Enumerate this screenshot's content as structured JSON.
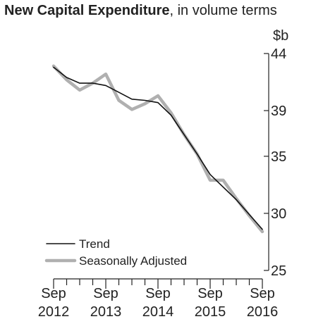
{
  "title": {
    "bold": "New Capital Expenditure",
    "rest": ", in volume terms"
  },
  "chart_data": {
    "type": "line",
    "ylabel": "$b",
    "ylim": [
      25,
      44
    ],
    "yticks": [
      25,
      30,
      35,
      39,
      44
    ],
    "xticks": [
      {
        "top": "Sep",
        "bottom": "2012"
      },
      {
        "top": "Sep",
        "bottom": "2013"
      },
      {
        "top": "Sep",
        "bottom": "2014"
      },
      {
        "top": "Sep",
        "bottom": "2015"
      },
      {
        "top": "Sep",
        "bottom": "2016"
      }
    ],
    "x": [
      "Sep 2012",
      "Dec 2012",
      "Mar 2013",
      "Jun 2013",
      "Sep 2013",
      "Dec 2013",
      "Mar 2014",
      "Jun 2014",
      "Sep 2014",
      "Dec 2014",
      "Mar 2015",
      "Jun 2015",
      "Sep 2015",
      "Dec 2015",
      "Mar 2016",
      "Jun 2016",
      "Sep 2016"
    ],
    "series": [
      {
        "name": "Trend",
        "color": "#111111",
        "values": [
          42.8,
          41.9,
          41.4,
          41.4,
          41.2,
          40.6,
          40.0,
          39.9,
          39.7,
          38.6,
          36.9,
          35.2,
          33.4,
          32.3,
          31.2,
          29.9,
          28.6
        ]
      },
      {
        "name": "Seasonally Adjusted",
        "color": "#b0b0b0",
        "values": [
          42.9,
          41.7,
          40.8,
          41.4,
          42.2,
          39.9,
          39.1,
          39.6,
          40.3,
          38.8,
          36.9,
          35.2,
          32.9,
          32.9,
          31.3,
          29.8,
          28.4
        ]
      }
    ],
    "grid": false,
    "legend": "bottom-left"
  }
}
